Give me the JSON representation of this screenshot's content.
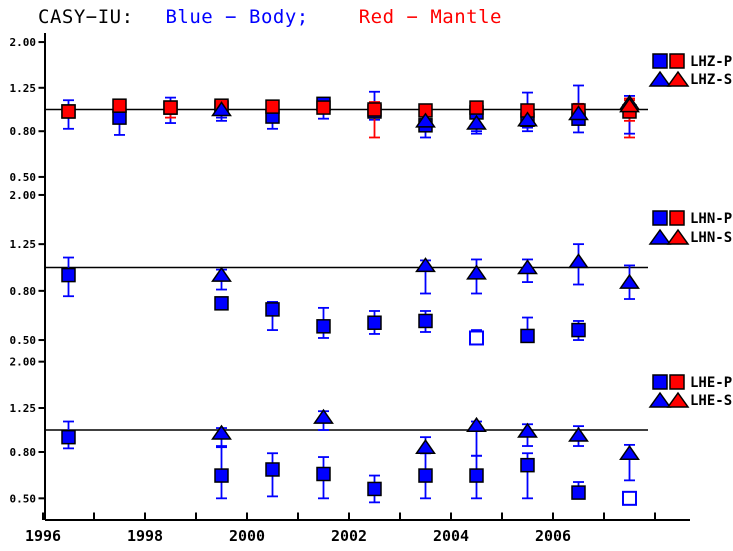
{
  "colors": {
    "body": "#0000ff",
    "mantle": "#ff0000",
    "axis": "#000000",
    "background": "#ffffff"
  },
  "chart_data": {
    "type": "scatter",
    "scale": "log",
    "title": "CASY-IU:  Blue - Body;  Red - Mantle",
    "title_parts": [
      {
        "text": "CASY−IU:",
        "color": "#000000"
      },
      {
        "text": "Blue − Body;",
        "color": "#0000ff"
      },
      {
        "text": "Red − Mantle",
        "color": "#ff0000"
      }
    ],
    "x_axis": {
      "min": 1996,
      "max": 2008.7,
      "tick_years": [
        1996,
        1997,
        1998,
        1999,
        2000,
        2001,
        2002,
        2003,
        2004,
        2005,
        2006,
        2007,
        2008
      ],
      "label_years": [
        1996,
        1998,
        2000,
        2002,
        2004,
        2006
      ]
    },
    "y_axis": {
      "tick_labels": [
        "2.00",
        "1.25",
        "0.80",
        "0.50"
      ],
      "tick_values": [
        2.0,
        1.25,
        0.8,
        0.5
      ],
      "reference_value": 1.0,
      "range": [
        0.45,
        2.2
      ]
    },
    "legend_position": "right",
    "grid": false,
    "panels": [
      {
        "channel": "LHZ",
        "legend": [
          {
            "label": "LHZ-P",
            "marker": "square"
          },
          {
            "label": "LHZ-S",
            "marker": "triangle"
          }
        ],
        "series": [
          {
            "name": "LHZ-P body",
            "color": "body",
            "marker": "square",
            "points": [
              {
                "x": 1996.5,
                "y": 0.98,
                "lo": 0.82,
                "hi": 1.1
              },
              {
                "x": 1997.5,
                "y": 0.92,
                "lo": 0.77,
                "hi": 1.0
              },
              {
                "x": 1998.5,
                "y": 1.02,
                "lo": 0.87,
                "hi": 1.13
              },
              {
                "x": 1999.5,
                "y": 1.02,
                "lo": 0.89,
                "hi": 1.07
              },
              {
                "x": 2000.5,
                "y": 0.93,
                "lo": 0.82,
                "hi": 1.0
              },
              {
                "x": 2001.5,
                "y": 1.06,
                "lo": 0.91,
                "hi": 1.1
              },
              {
                "x": 2002.5,
                "y": 0.98,
                "lo": 0.9,
                "hi": 1.2
              },
              {
                "x": 2003.5,
                "y": 0.85,
                "lo": 0.75,
                "hi": 0.93
              },
              {
                "x": 2004.5,
                "y": 0.97,
                "lo": 0.78,
                "hi": 1.02
              },
              {
                "x": 2005.5,
                "y": 0.9,
                "lo": 0.8,
                "hi": 1.19
              },
              {
                "x": 2006.5,
                "y": 0.91,
                "lo": 0.79,
                "hi": 1.28
              }
            ]
          },
          {
            "name": "LHZ-P mantle",
            "color": "mantle",
            "marker": "square",
            "points": [
              {
                "x": 1996.5,
                "y": 0.98,
                "lo": 0.93,
                "hi": 1.02
              },
              {
                "x": 1997.5,
                "y": 1.04,
                "lo": 0.99,
                "hi": 1.08
              },
              {
                "x": 1998.5,
                "y": 1.02,
                "lo": 0.92,
                "hi": 1.07
              },
              {
                "x": 1999.5,
                "y": 1.04,
                "lo": 0.97,
                "hi": 1.08
              },
              {
                "x": 2000.5,
                "y": 1.03,
                "lo": 0.97,
                "hi": 1.08
              },
              {
                "x": 2001.5,
                "y": 1.02,
                "lo": 0.96,
                "hi": 1.07
              },
              {
                "x": 2002.5,
                "y": 1.0,
                "lo": 0.75,
                "hi": 1.08
              },
              {
                "x": 2003.5,
                "y": 0.99,
                "lo": 0.93,
                "hi": 1.04
              },
              {
                "x": 2004.5,
                "y": 1.02,
                "lo": 0.96,
                "hi": 1.07
              },
              {
                "x": 2005.5,
                "y": 0.99,
                "lo": 0.93,
                "hi": 1.05
              },
              {
                "x": 2006.5,
                "y": 0.99,
                "lo": 0.92,
                "hi": 1.06
              },
              {
                "x": 2007.5,
                "y": 0.98,
                "lo": 0.75,
                "hi": 1.1
              }
            ]
          },
          {
            "name": "LHZ-S body",
            "color": "body",
            "marker": "triangle",
            "points": [
              {
                "x": 1999.5,
                "y": 1.0,
                "lo": 0.92,
                "hi": 1.05
              },
              {
                "x": 2003.5,
                "y": 0.89,
                "lo": 0.8,
                "hi": 0.95
              },
              {
                "x": 2004.5,
                "y": 0.87,
                "lo": 0.8,
                "hi": 0.94
              },
              {
                "x": 2005.5,
                "y": 0.9,
                "lo": 0.83,
                "hi": 0.97
              },
              {
                "x": 2006.5,
                "y": 0.96,
                "lo": 0.88,
                "hi": 1.02
              },
              {
                "x": 2007.5,
                "y": 1.07,
                "lo": 0.78,
                "hi": 1.15
              }
            ]
          },
          {
            "name": "LHZ-S mantle",
            "color": "mantle",
            "marker": "triangle",
            "points": [
              {
                "x": 2007.5,
                "y": 1.04,
                "lo": 0.89,
                "hi": 1.12
              }
            ]
          }
        ]
      },
      {
        "channel": "LHN",
        "legend": [
          {
            "label": "LHN-P",
            "marker": "square"
          },
          {
            "label": "LHN-S",
            "marker": "triangle"
          }
        ],
        "series": [
          {
            "name": "LHN-P body",
            "color": "body",
            "marker": "square",
            "points": [
              {
                "x": 1996.5,
                "y": 0.93,
                "lo": 0.76,
                "hi": 1.1
              },
              {
                "x": 1999.5,
                "y": 0.71,
                "lo": 0.67,
                "hi": 0.74
              },
              {
                "x": 2000.5,
                "y": 0.67,
                "lo": 0.55,
                "hi": 0.72
              },
              {
                "x": 2001.5,
                "y": 0.57,
                "lo": 0.51,
                "hi": 0.68
              },
              {
                "x": 2002.5,
                "y": 0.59,
                "lo": 0.53,
                "hi": 0.66
              },
              {
                "x": 2003.5,
                "y": 0.6,
                "lo": 0.54,
                "hi": 0.66
              },
              {
                "x": 2004.5,
                "y": 0.51,
                "lo": 0.48,
                "hi": 0.55,
                "open": true
              },
              {
                "x": 2005.5,
                "y": 0.52,
                "lo": 0.5,
                "hi": 0.62
              },
              {
                "x": 2006.5,
                "y": 0.55,
                "lo": 0.5,
                "hi": 0.6
              }
            ]
          },
          {
            "name": "LHN-S body",
            "color": "body",
            "marker": "triangle",
            "points": [
              {
                "x": 1999.5,
                "y": 0.93,
                "lo": 0.81,
                "hi": 0.98
              },
              {
                "x": 2003.5,
                "y": 1.02,
                "lo": 0.78,
                "hi": 1.07
              },
              {
                "x": 2004.5,
                "y": 0.95,
                "lo": 0.78,
                "hi": 1.08
              },
              {
                "x": 2005.5,
                "y": 1.0,
                "lo": 0.87,
                "hi": 1.08
              },
              {
                "x": 2006.5,
                "y": 1.06,
                "lo": 0.85,
                "hi": 1.25
              },
              {
                "x": 2007.5,
                "y": 0.87,
                "lo": 0.74,
                "hi": 1.02
              }
            ]
          }
        ]
      },
      {
        "channel": "LHE",
        "legend": [
          {
            "label": "LHE-P",
            "marker": "square"
          },
          {
            "label": "LHE-S",
            "marker": "triangle"
          }
        ],
        "series": [
          {
            "name": "LHE-P body",
            "color": "body",
            "marker": "square",
            "points": [
              {
                "x": 1996.5,
                "y": 0.93,
                "lo": 0.83,
                "hi": 1.09
              },
              {
                "x": 1999.5,
                "y": 0.63,
                "lo": 0.5,
                "hi": 0.84
              },
              {
                "x": 2000.5,
                "y": 0.67,
                "lo": 0.51,
                "hi": 0.79
              },
              {
                "x": 2001.5,
                "y": 0.64,
                "lo": 0.5,
                "hi": 0.76
              },
              {
                "x": 2002.5,
                "y": 0.55,
                "lo": 0.48,
                "hi": 0.63
              },
              {
                "x": 2003.5,
                "y": 0.63,
                "lo": 0.5,
                "hi": 0.79
              },
              {
                "x": 2004.5,
                "y": 0.63,
                "lo": 0.5,
                "hi": 0.77
              },
              {
                "x": 2005.5,
                "y": 0.7,
                "lo": 0.5,
                "hi": 0.79
              },
              {
                "x": 2006.5,
                "y": 0.53,
                "lo": 0.5,
                "hi": 0.59
              },
              {
                "x": 2007.5,
                "y": 0.5,
                "lo": 0.47,
                "hi": 0.53,
                "open": true
              }
            ]
          },
          {
            "name": "LHE-S body",
            "color": "body",
            "marker": "triangle",
            "points": [
              {
                "x": 1999.5,
                "y": 0.97,
                "lo": 0.85,
                "hi": 1.02
              },
              {
                "x": 2001.5,
                "y": 1.14,
                "lo": 1.0,
                "hi": 1.21
              },
              {
                "x": 2003.5,
                "y": 0.84,
                "lo": 0.79,
                "hi": 0.93
              },
              {
                "x": 2004.5,
                "y": 1.05,
                "lo": 0.77,
                "hi": 1.09
              },
              {
                "x": 2005.5,
                "y": 0.99,
                "lo": 0.85,
                "hi": 1.06
              },
              {
                "x": 2006.5,
                "y": 0.95,
                "lo": 0.85,
                "hi": 1.04
              },
              {
                "x": 2007.5,
                "y": 0.79,
                "lo": 0.6,
                "hi": 0.86
              }
            ]
          }
        ]
      }
    ]
  }
}
